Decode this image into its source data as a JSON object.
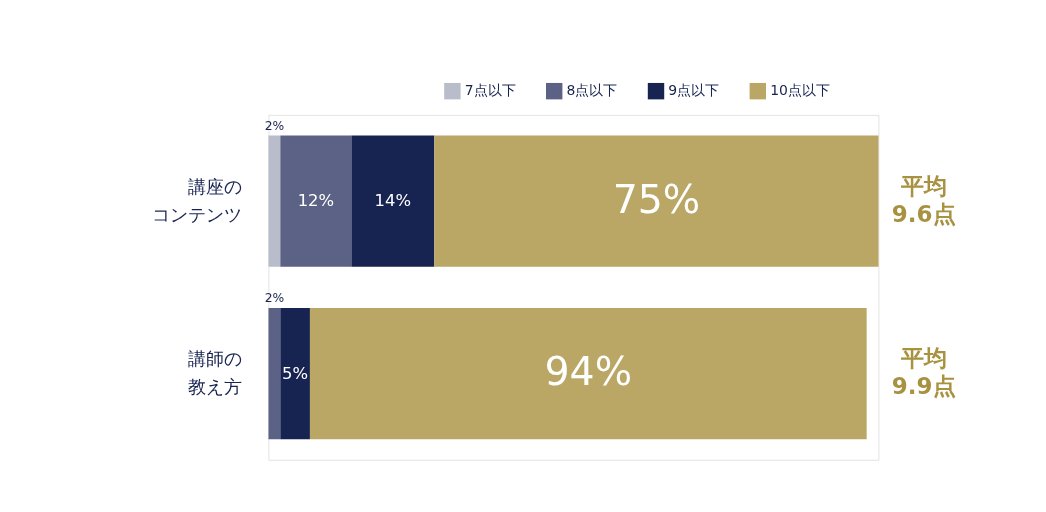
{
  "chart_data": {
    "type": "bar",
    "orientation": "horizontal",
    "stacked": true,
    "legend": "top right",
    "categories": [
      "講座のコンテンツ",
      "講師の教え方"
    ],
    "series": [
      {
        "name": "7点以下",
        "color": "#b8bccb",
        "values": [
          2,
          null
        ],
        "value_labels": [
          "2%",
          null
        ]
      },
      {
        "name": "8点以下",
        "color": "#5b6285",
        "values": [
          12,
          2
        ],
        "value_labels": [
          "12%",
          "2%"
        ]
      },
      {
        "name": "9点以下",
        "color": "#172350",
        "values": [
          14,
          5
        ],
        "value_labels": [
          "14%",
          "5%"
        ]
      },
      {
        "name": "10点以下",
        "color": "#baa665",
        "values": [
          75,
          94
        ],
        "value_labels": [
          "75%",
          "94%"
        ]
      }
    ],
    "annotations": [
      "平均9.6点",
      "平均9.9点"
    ]
  }
}
